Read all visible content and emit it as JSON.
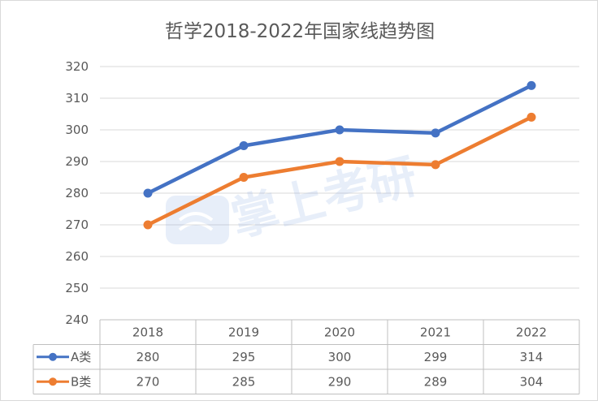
{
  "chart_data": {
    "type": "line",
    "title": "哲学2018-2022年国家线趋势图",
    "categories": [
      "2018",
      "2019",
      "2020",
      "2021",
      "2022"
    ],
    "series": [
      {
        "name": "A类",
        "values": [
          280,
          295,
          300,
          299,
          314
        ],
        "color": "#4472C4"
      },
      {
        "name": "B类",
        "values": [
          270,
          285,
          290,
          289,
          304
        ],
        "color": "#ED7D31"
      }
    ],
    "ylim": [
      240,
      320
    ],
    "yticks": [
      "320",
      "310",
      "300",
      "290",
      "280",
      "270",
      "260",
      "250",
      "240"
    ],
    "grid": true,
    "legend": "data-table",
    "xlabel": "",
    "ylabel": ""
  },
  "watermark": "掌上考研"
}
